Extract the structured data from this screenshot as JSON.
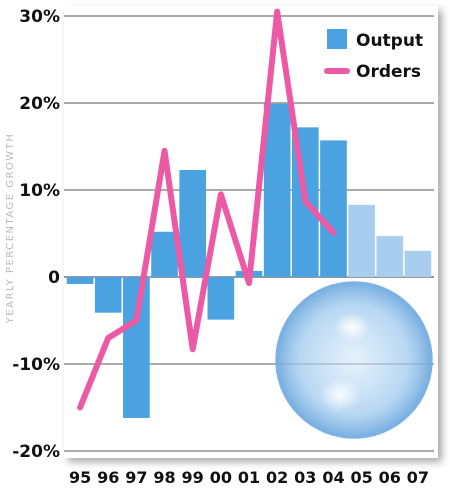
{
  "chart_data": {
    "type": "bar",
    "ylabel": "YEARLY PERCENTAGE GROWTH",
    "categories": [
      "95",
      "96",
      "97",
      "98",
      "99",
      "00",
      "01",
      "02",
      "03",
      "04",
      "05",
      "06",
      "07"
    ],
    "ylim": [
      -20,
      30
    ],
    "yticks": [
      30,
      20,
      10,
      0,
      -10,
      -20
    ],
    "ytick_labels": [
      "30%",
      "20%",
      "10%",
      "0",
      "-10%",
      "-20%"
    ],
    "grid": true,
    "legend_position": "top-right",
    "series": [
      {
        "name": "Output",
        "kind": "bar",
        "color": "#4aa3e0",
        "forecast_color": "#a9cdee",
        "forecast_from_index": 10,
        "values": [
          -0.8,
          -4.1,
          -16.2,
          5.2,
          12.3,
          -4.9,
          0.7,
          19.9,
          17.2,
          15.7,
          8.3,
          4.7,
          3.0
        ]
      },
      {
        "name": "Orders",
        "kind": "line",
        "color": "#ec5aa6",
        "values": [
          -15.0,
          -7.0,
          -5.0,
          14.5,
          -8.3,
          9.5,
          -0.7,
          30.5,
          8.7,
          5.1,
          null,
          null,
          null
        ]
      }
    ]
  }
}
